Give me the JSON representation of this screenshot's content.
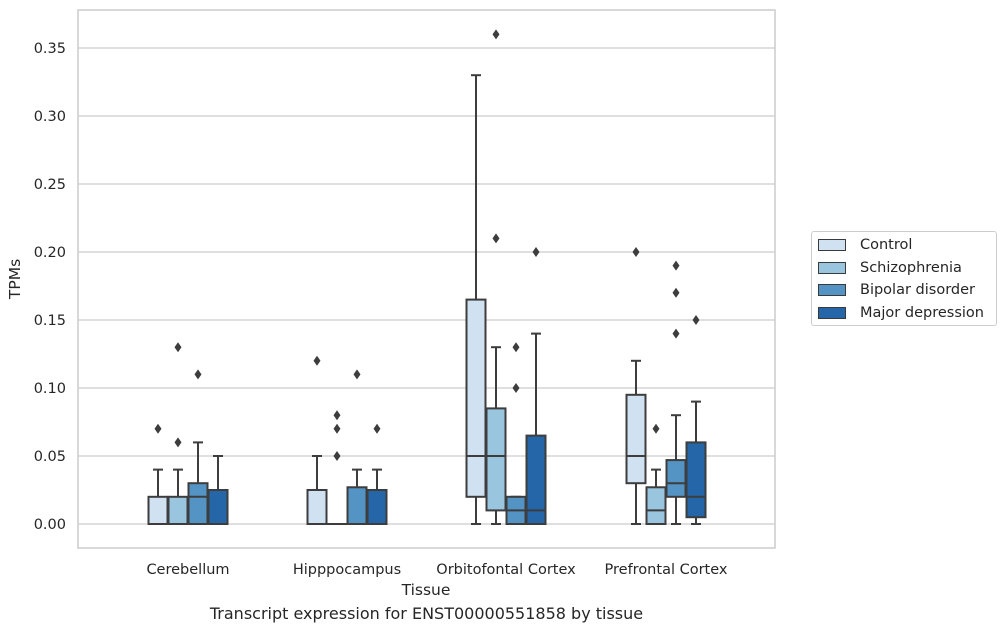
{
  "chart_data": {
    "type": "box",
    "caption": "Transcript expression for ENST00000551858 by tissue",
    "xlabel": "Tissue",
    "ylabel": "TPMs",
    "ylim": [
      -0.018,
      0.38
    ],
    "yticks": [
      0.0,
      0.05,
      0.1,
      0.15,
      0.2,
      0.25,
      0.3,
      0.35
    ],
    "ytick_labels": [
      "0.00",
      "0.05",
      "0.10",
      "0.15",
      "0.20",
      "0.25",
      "0.30",
      "0.35"
    ],
    "grid": "horizontal",
    "legend_position": "right",
    "categories": [
      "Cerebellum",
      "Hipppocampus",
      "Orbitofontal Cortex",
      "Prefrontal Cortex"
    ],
    "series": [
      {
        "name": "Control",
        "color": "#d0e1f2",
        "boxes": [
          {
            "whislo": 0.0,
            "q1": 0.0,
            "med": 0.0,
            "q3": 0.02,
            "whishi": 0.04,
            "fliers": [
              0.07
            ]
          },
          {
            "whislo": 0.0,
            "q1": 0.0,
            "med": 0.0,
            "q3": 0.025,
            "whishi": 0.05,
            "fliers": [
              0.12
            ]
          },
          {
            "whislo": 0.0,
            "q1": 0.02,
            "med": 0.05,
            "q3": 0.165,
            "whishi": 0.33,
            "fliers": []
          },
          {
            "whislo": 0.0,
            "q1": 0.03,
            "med": 0.05,
            "q3": 0.095,
            "whishi": 0.12,
            "fliers": [
              0.2
            ]
          }
        ]
      },
      {
        "name": "Schizophrenia",
        "color": "#9ac5df",
        "boxes": [
          {
            "whislo": 0.0,
            "q1": 0.0,
            "med": 0.0,
            "q3": 0.02,
            "whishi": 0.04,
            "fliers": [
              0.06,
              0.13
            ]
          },
          {
            "whislo": 0.0,
            "q1": 0.0,
            "med": 0.0,
            "q3": 0.0,
            "whishi": 0.0,
            "fliers": [
              0.05,
              0.07,
              0.08
            ]
          },
          {
            "whislo": 0.0,
            "q1": 0.01,
            "med": 0.05,
            "q3": 0.085,
            "whishi": 0.13,
            "fliers": [
              0.21,
              0.36
            ]
          },
          {
            "whislo": 0.0,
            "q1": 0.0,
            "med": 0.01,
            "q3": 0.027,
            "whishi": 0.04,
            "fliers": [
              0.07
            ]
          }
        ]
      },
      {
        "name": "Bipolar disorder",
        "color": "#5394c4",
        "boxes": [
          {
            "whislo": 0.0,
            "q1": 0.0,
            "med": 0.02,
            "q3": 0.03,
            "whishi": 0.06,
            "fliers": [
              0.11
            ]
          },
          {
            "whislo": 0.0,
            "q1": 0.0,
            "med": 0.0,
            "q3": 0.027,
            "whishi": 0.04,
            "fliers": [
              0.11
            ]
          },
          {
            "whislo": 0.0,
            "q1": 0.0,
            "med": 0.01,
            "q3": 0.02,
            "whishi": 0.02,
            "fliers": [
              0.1,
              0.13
            ]
          },
          {
            "whislo": 0.0,
            "q1": 0.02,
            "med": 0.03,
            "q3": 0.047,
            "whishi": 0.08,
            "fliers": [
              0.14,
              0.17,
              0.19
            ]
          }
        ]
      },
      {
        "name": "Major depression",
        "color": "#2466a7",
        "boxes": [
          {
            "whislo": 0.0,
            "q1": 0.0,
            "med": 0.0,
            "q3": 0.025,
            "whishi": 0.05,
            "fliers": []
          },
          {
            "whislo": 0.0,
            "q1": 0.0,
            "med": 0.0,
            "q3": 0.025,
            "whishi": 0.04,
            "fliers": [
              0.07
            ]
          },
          {
            "whislo": 0.0,
            "q1": 0.0,
            "med": 0.01,
            "q3": 0.065,
            "whishi": 0.14,
            "fliers": [
              0.2
            ]
          },
          {
            "whislo": 0.0,
            "q1": 0.005,
            "med": 0.02,
            "q3": 0.06,
            "whishi": 0.09,
            "fliers": [
              0.15
            ]
          }
        ]
      }
    ]
  }
}
